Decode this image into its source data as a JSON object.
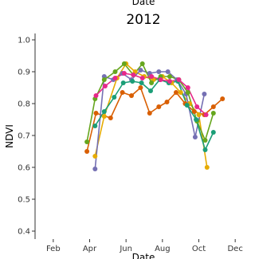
{
  "chart_data": {
    "type": "line",
    "top_label": "Date",
    "panel_title": "2012",
    "xlabel": "Date",
    "ylabel": "NDVI",
    "x_ticks": [
      "Feb",
      "Apr",
      "Jun",
      "Aug",
      "Oct",
      "Dec"
    ],
    "x_tick_months": [
      2,
      4,
      6,
      8,
      10,
      12
    ],
    "xlim_months": [
      1.0,
      13.0
    ],
    "y_ticks": [
      "0.4",
      "0.5",
      "0.6",
      "0.7",
      "0.8",
      "0.9",
      "1.0"
    ],
    "y_tick_values": [
      0.4,
      0.5,
      0.6,
      0.7,
      0.8,
      0.9,
      1.0
    ],
    "ylim": [
      0.375,
      1.02
    ],
    "grid": false,
    "legend": "none",
    "x_unit": "month",
    "series": [
      {
        "color": "#d95f02",
        "points": [
          [
            3.85,
            0.65
          ],
          [
            4.35,
            0.77
          ],
          [
            5.15,
            0.755
          ],
          [
            5.8,
            0.835
          ],
          [
            6.3,
            0.825
          ],
          [
            6.8,
            0.85
          ],
          [
            7.3,
            0.77
          ],
          [
            7.8,
            0.79
          ],
          [
            8.25,
            0.805
          ],
          [
            8.75,
            0.835
          ],
          [
            9.25,
            0.8
          ],
          [
            9.75,
            0.775
          ],
          [
            10.3,
            0.765
          ],
          [
            10.8,
            0.79
          ],
          [
            11.3,
            0.815
          ]
        ]
      },
      {
        "color": "#e6ab02",
        "points": [
          [
            4.3,
            0.635
          ],
          [
            4.8,
            0.76
          ],
          [
            5.5,
            0.88
          ],
          [
            6.0,
            0.925
          ],
          [
            6.5,
            0.9
          ],
          [
            7.0,
            0.885
          ],
          [
            7.5,
            0.875
          ],
          [
            8.0,
            0.885
          ],
          [
            8.5,
            0.865
          ],
          [
            9.0,
            0.835
          ],
          [
            9.5,
            0.8
          ],
          [
            10.0,
            0.765
          ],
          [
            10.45,
            0.6
          ]
        ]
      },
      {
        "color": "#7570b3",
        "points": [
          [
            4.3,
            0.595
          ],
          [
            4.8,
            0.885
          ],
          [
            5.3,
            0.875
          ],
          [
            5.8,
            0.895
          ],
          [
            6.3,
            0.875
          ],
          [
            6.8,
            0.905
          ],
          [
            7.3,
            0.895
          ],
          [
            7.8,
            0.9
          ],
          [
            8.3,
            0.9
          ],
          [
            8.8,
            0.875
          ],
          [
            9.3,
            0.83
          ],
          [
            9.8,
            0.695
          ],
          [
            10.3,
            0.83
          ]
        ]
      },
      {
        "color": "#66a61e",
        "points": [
          [
            3.85,
            0.68
          ],
          [
            4.3,
            0.815
          ],
          [
            4.8,
            0.875
          ],
          [
            5.4,
            0.9
          ],
          [
            5.9,
            0.925
          ],
          [
            6.4,
            0.89
          ],
          [
            6.9,
            0.925
          ],
          [
            7.4,
            0.865
          ],
          [
            7.9,
            0.885
          ],
          [
            8.4,
            0.885
          ],
          [
            8.9,
            0.875
          ],
          [
            9.4,
            0.835
          ],
          [
            9.9,
            0.745
          ],
          [
            10.35,
            0.685
          ],
          [
            10.8,
            0.77
          ]
        ]
      },
      {
        "color": "#1b9e77",
        "points": [
          [
            4.3,
            0.73
          ],
          [
            4.8,
            0.775
          ],
          [
            5.35,
            0.82
          ],
          [
            5.85,
            0.865
          ],
          [
            6.35,
            0.87
          ],
          [
            6.85,
            0.865
          ],
          [
            7.35,
            0.84
          ],
          [
            7.85,
            0.875
          ],
          [
            8.35,
            0.865
          ],
          [
            8.85,
            0.87
          ],
          [
            9.35,
            0.795
          ],
          [
            9.85,
            0.75
          ],
          [
            10.35,
            0.655
          ],
          [
            10.8,
            0.71
          ]
        ]
      },
      {
        "color": "#e7298a",
        "points": [
          [
            4.35,
            0.825
          ],
          [
            4.85,
            0.855
          ],
          [
            5.4,
            0.88
          ],
          [
            5.9,
            0.895
          ],
          [
            6.4,
            0.89
          ],
          [
            6.9,
            0.88
          ],
          [
            7.4,
            0.885
          ],
          [
            7.9,
            0.875
          ],
          [
            8.4,
            0.87
          ],
          [
            8.9,
            0.875
          ],
          [
            9.4,
            0.85
          ],
          [
            9.9,
            0.79
          ],
          [
            10.4,
            0.765
          ]
        ]
      }
    ]
  }
}
